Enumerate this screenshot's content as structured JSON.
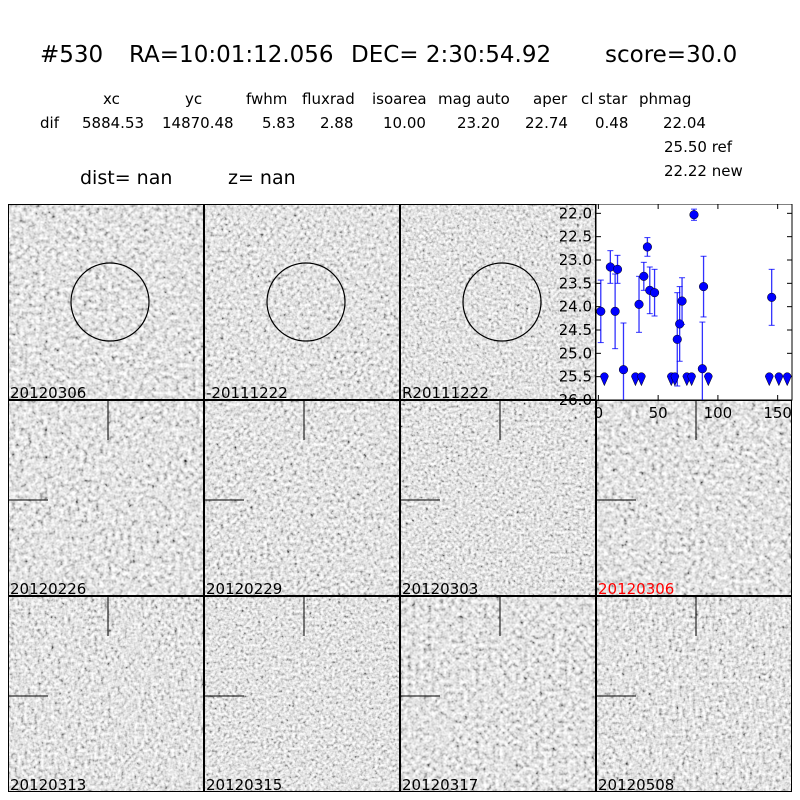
{
  "header": {
    "id": "#530",
    "ra": "RA=10:01:12.056",
    "dec": "DEC= 2:30:54.92",
    "score": "score=30.0",
    "columns": [
      "xc",
      "yc",
      "fwhm",
      "fluxrad",
      "isoarea",
      "mag auto",
      "aper",
      "cl star",
      "phmag"
    ],
    "row_label": "dif",
    "values": [
      "5884.53",
      "14870.48",
      "5.83",
      "2.88",
      "10.00",
      "23.20",
      "22.74",
      "0.48",
      "22.04"
    ],
    "ref": "25.50 ref",
    "new": "22.22 new",
    "dist": "dist=   nan",
    "z": "z=   nan"
  },
  "panels": [
    {
      "label": "20120306",
      "circle": true
    },
    {
      "label": "-20111222",
      "circle": true
    },
    {
      "label": "R20111222",
      "circle": true
    },
    {
      "label": "20120226"
    },
    {
      "label": "20120229"
    },
    {
      "label": "20120303"
    },
    {
      "label": "20120306",
      "highlight": "#ff0000"
    },
    {
      "label": "20120313"
    },
    {
      "label": "20120315"
    },
    {
      "label": "20120317"
    },
    {
      "label": "20120508"
    }
  ],
  "chart_data": {
    "type": "scatter",
    "xlim": [
      -2,
      162
    ],
    "ylim": [
      26.0,
      21.8
    ],
    "y_inverted": true,
    "xticks": [
      0,
      50,
      100,
      150
    ],
    "yticks": [
      22.0,
      22.5,
      23.0,
      23.5,
      24.0,
      24.5,
      25.0,
      25.5,
      26.0
    ],
    "color": "#0000ff",
    "detections": [
      {
        "x": 2,
        "y": 24.1,
        "err": 0.67
      },
      {
        "x": 10,
        "y": 23.15,
        "err": 0.35
      },
      {
        "x": 14,
        "y": 24.1,
        "err": 0.8
      },
      {
        "x": 16,
        "y": 23.2,
        "err": 0.3
      },
      {
        "x": 21,
        "y": 25.35,
        "err": 1.0
      },
      {
        "x": 34,
        "y": 23.95,
        "err": 0.6
      },
      {
        "x": 38,
        "y": 23.35,
        "err": 0.3
      },
      {
        "x": 41,
        "y": 22.72,
        "err": 0.2
      },
      {
        "x": 43,
        "y": 23.65,
        "err": 0.5
      },
      {
        "x": 47,
        "y": 23.7,
        "err": 0.5
      },
      {
        "x": 66,
        "y": 24.7,
        "err": 1.0
      },
      {
        "x": 68,
        "y": 24.37,
        "err": 0.8
      },
      {
        "x": 70,
        "y": 23.88,
        "err": 0.5
      },
      {
        "x": 80,
        "y": 22.03,
        "err": 0.12
      },
      {
        "x": 87,
        "y": 25.33,
        "err": 1.0
      },
      {
        "x": 88,
        "y": 23.57,
        "err": 0.65
      },
      {
        "x": 145,
        "y": 23.8,
        "err": 0.6
      }
    ],
    "upper_limits": [
      {
        "x": 5,
        "y": 25.5
      },
      {
        "x": 31,
        "y": 25.5
      },
      {
        "x": 36,
        "y": 25.5
      },
      {
        "x": 61,
        "y": 25.5
      },
      {
        "x": 64,
        "y": 25.5
      },
      {
        "x": 74,
        "y": 25.5
      },
      {
        "x": 78,
        "y": 25.5
      },
      {
        "x": 92,
        "y": 25.5
      },
      {
        "x": 143,
        "y": 25.5
      },
      {
        "x": 151,
        "y": 25.5
      },
      {
        "x": 158,
        "y": 25.5
      }
    ]
  }
}
